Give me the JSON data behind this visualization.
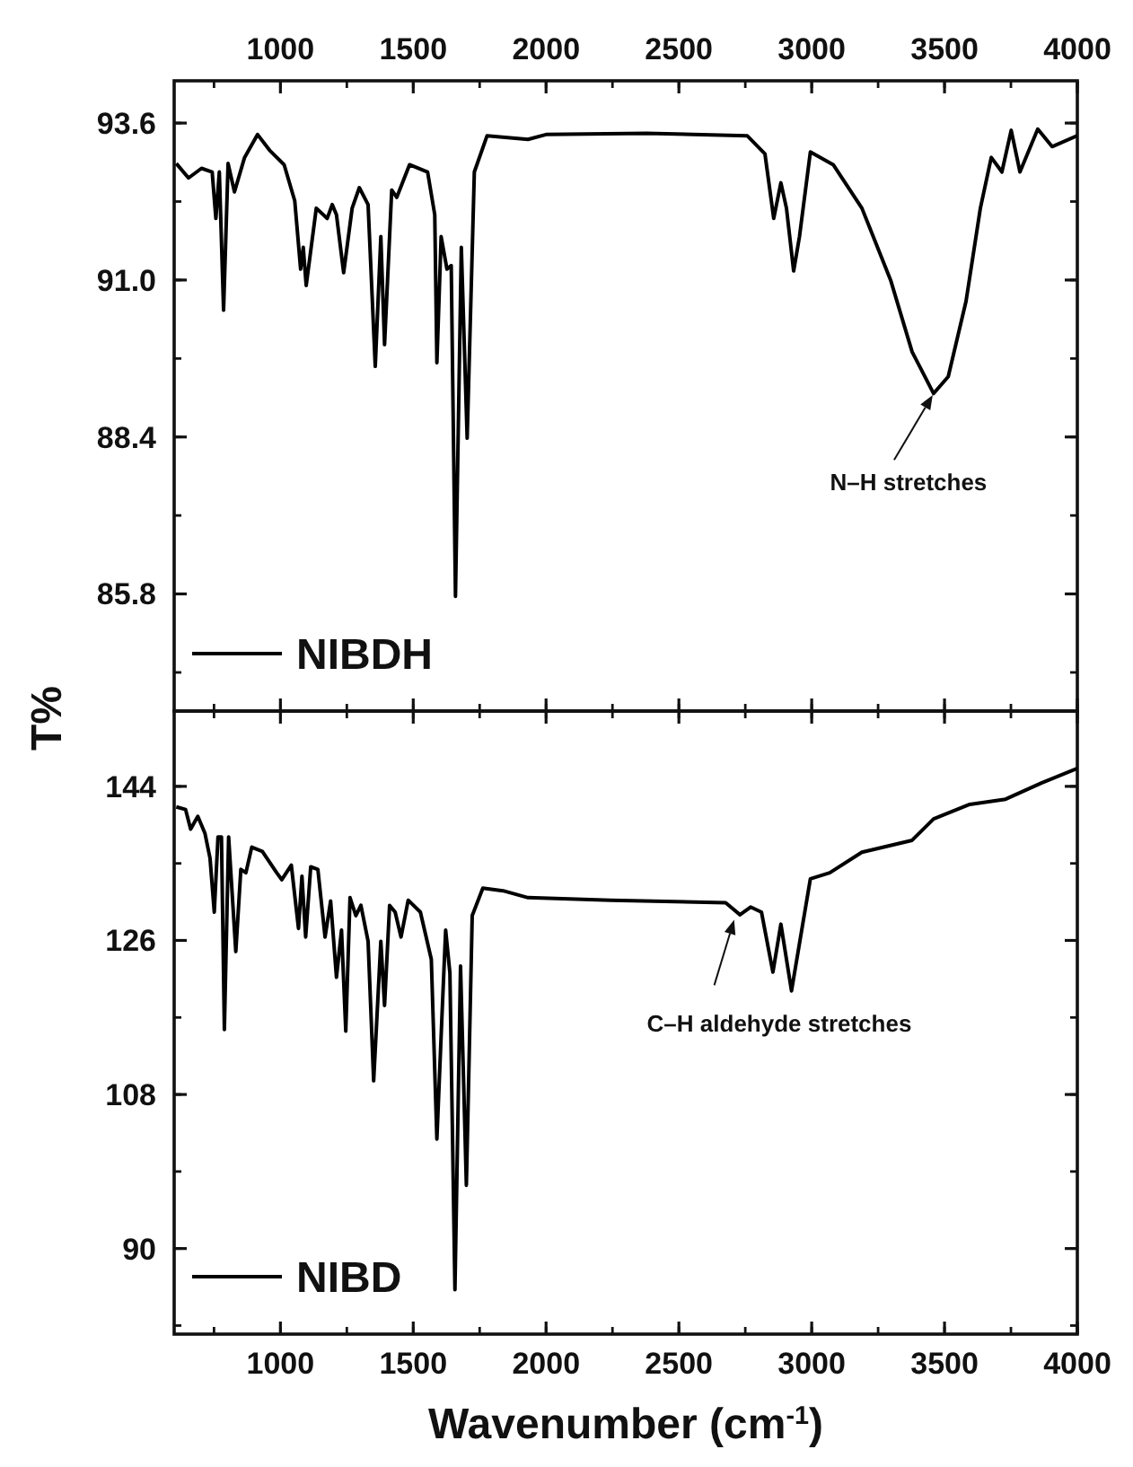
{
  "chart_data": [
    {
      "type": "line",
      "ylabel": "T%",
      "xlim": [
        600,
        4000
      ],
      "x2lim": [
        600,
        4000
      ],
      "x2ticks": [
        1000,
        1500,
        2000,
        2500,
        3000,
        3500,
        4000
      ],
      "ylim": [
        83.86,
        94.3
      ],
      "yticks": [
        85.8,
        88.4,
        {
          "value": 91.0,
          "label": "91.0"
        },
        93.6
      ],
      "legend": "bottom left",
      "annotations": [
        {
          "text": "N–H stretches",
          "x": 3459,
          "y": 89.12
        }
      ],
      "series": [
        {
          "name": "NIBDH",
          "color": "#000000",
          "x": [
            608,
            654,
            703,
            743,
            757,
            770,
            786,
            803,
            827,
            865,
            914,
            959,
            1014,
            1054,
            1076,
            1086,
            1097,
            1135,
            1176,
            1195,
            1211,
            1238,
            1270,
            1297,
            1330,
            1357,
            1378,
            1392,
            1419,
            1438,
            1486,
            1554,
            1581,
            1589,
            1605,
            1627,
            1643,
            1659,
            1681,
            1703,
            1730,
            1778,
            1932,
            2000,
            2378,
            2757,
            2824,
            2857,
            2884,
            2905,
            2932,
            2954,
            2995,
            3081,
            3189,
            3297,
            3378,
            3459,
            3514,
            3581,
            3635,
            3676,
            3716,
            3751,
            3784,
            3851,
            3905,
            4000
          ],
          "values": [
            92.93,
            92.69,
            92.85,
            92.79,
            92.02,
            92.79,
            90.5,
            92.93,
            92.46,
            93.03,
            93.41,
            93.15,
            92.91,
            92.31,
            91.18,
            91.54,
            90.91,
            92.19,
            92.02,
            92.25,
            92.08,
            91.12,
            92.19,
            92.53,
            92.25,
            89.57,
            91.72,
            89.93,
            92.49,
            92.37,
            92.91,
            92.79,
            92.08,
            89.63,
            91.72,
            91.18,
            91.24,
            85.76,
            91.54,
            88.38,
            92.79,
            93.39,
            93.33,
            93.41,
            93.43,
            93.39,
            93.09,
            92.02,
            92.61,
            92.19,
            91.15,
            91.72,
            93.12,
            92.91,
            92.19,
            91.0,
            89.81,
            89.12,
            89.4,
            90.65,
            92.19,
            93.03,
            92.79,
            93.48,
            92.79,
            93.5,
            93.21,
            93.39
          ]
        }
      ]
    },
    {
      "type": "line",
      "xlabel": "Wavenumber (cm$^{-1}$)",
      "xlim": [
        600,
        4000
      ],
      "xticks": [
        1000,
        1500,
        2000,
        2500,
        3000,
        3500,
        4000
      ],
      "ylim": [
        80,
        152.8
      ],
      "yticks": [
        90,
        108,
        126,
        144
      ],
      "legend": "bottom left",
      "annotations": [
        "C–H aldehyde stretches"
      ],
      "series": [
        {
          "name": "NIBD",
          "color": "#000000",
          "x": [
            608,
            643,
            662,
            689,
            716,
            735,
            751,
            765,
            778,
            789,
            805,
            832,
            851,
            870,
            892,
            932,
            986,
            1005,
            1041,
            1068,
            1081,
            1095,
            1114,
            1141,
            1168,
            1189,
            1211,
            1230,
            1246,
            1262,
            1284,
            1303,
            1330,
            1351,
            1378,
            1392,
            1411,
            1432,
            1454,
            1481,
            1527,
            1568,
            1589,
            1608,
            1622,
            1638,
            1657,
            1678,
            1700,
            1722,
            1762,
            1838,
            1932,
            2243,
            2676,
            2730,
            2770,
            2811,
            2854,
            2884,
            2924,
            2951,
            2995,
            3068,
            3189,
            3378,
            3459,
            3595,
            3730,
            3865,
            4000
          ],
          "values": [
            141.6,
            141.3,
            139.0,
            140.5,
            138.5,
            135.6,
            129.3,
            138.1,
            138.1,
            115.6,
            138.1,
            124.7,
            134.3,
            133.9,
            136.9,
            136.4,
            133.9,
            133.1,
            134.8,
            127.4,
            133.5,
            126.4,
            134.6,
            134.3,
            126.4,
            130.6,
            121.7,
            127.2,
            115.4,
            131.0,
            128.9,
            130.1,
            125.9,
            109.6,
            125.9,
            118.4,
            130.1,
            129.3,
            126.4,
            130.7,
            129.3,
            123.8,
            102.8,
            117.1,
            127.2,
            122.2,
            85.2,
            123.0,
            97.4,
            128.9,
            132.1,
            131.8,
            131.0,
            130.7,
            130.4,
            129.0,
            129.9,
            129.3,
            122.3,
            127.9,
            120.1,
            125.1,
            133.2,
            133.9,
            136.3,
            137.7,
            140.2,
            141.9,
            142.5,
            144.4,
            146.1
          ]
        }
      ]
    }
  ]
}
